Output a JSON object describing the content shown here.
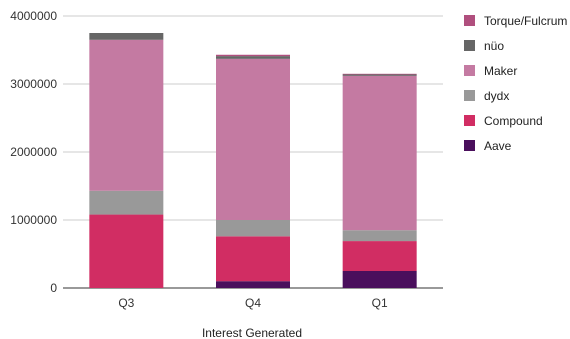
{
  "chart_data": {
    "type": "bar",
    "stacked": true,
    "categories": [
      "Q3",
      "Q4",
      "Q1"
    ],
    "series": [
      {
        "name": "Aave",
        "color": "#4a0f5c",
        "values": [
          0,
          100000,
          250000
        ]
      },
      {
        "name": "Compound",
        "color": "#d12d63",
        "values": [
          1080000,
          660000,
          440000
        ]
      },
      {
        "name": "dydx",
        "color": "#999999",
        "values": [
          350000,
          240000,
          160000
        ]
      },
      {
        "name": "Maker",
        "color": "#c47aa2",
        "values": [
          2220000,
          2370000,
          2270000
        ]
      },
      {
        "name": "nüo",
        "color": "#666666",
        "values": [
          100000,
          40000,
          20000
        ]
      },
      {
        "name": "Torque/Fulcrum",
        "color": "#b04f7e",
        "values": [
          0,
          20000,
          10000
        ]
      }
    ],
    "legend_order": [
      "Torque/Fulcrum",
      "nüo",
      "Maker",
      "dydx",
      "Compound",
      "Aave"
    ],
    "legend_position": "right",
    "yticks": [
      "0",
      "1000000",
      "2000000",
      "3000000",
      "4000000"
    ],
    "ylim": [
      0,
      4000000
    ],
    "xlabel": "Interest Generated",
    "ylabel": "",
    "title": "",
    "grid": true
  }
}
